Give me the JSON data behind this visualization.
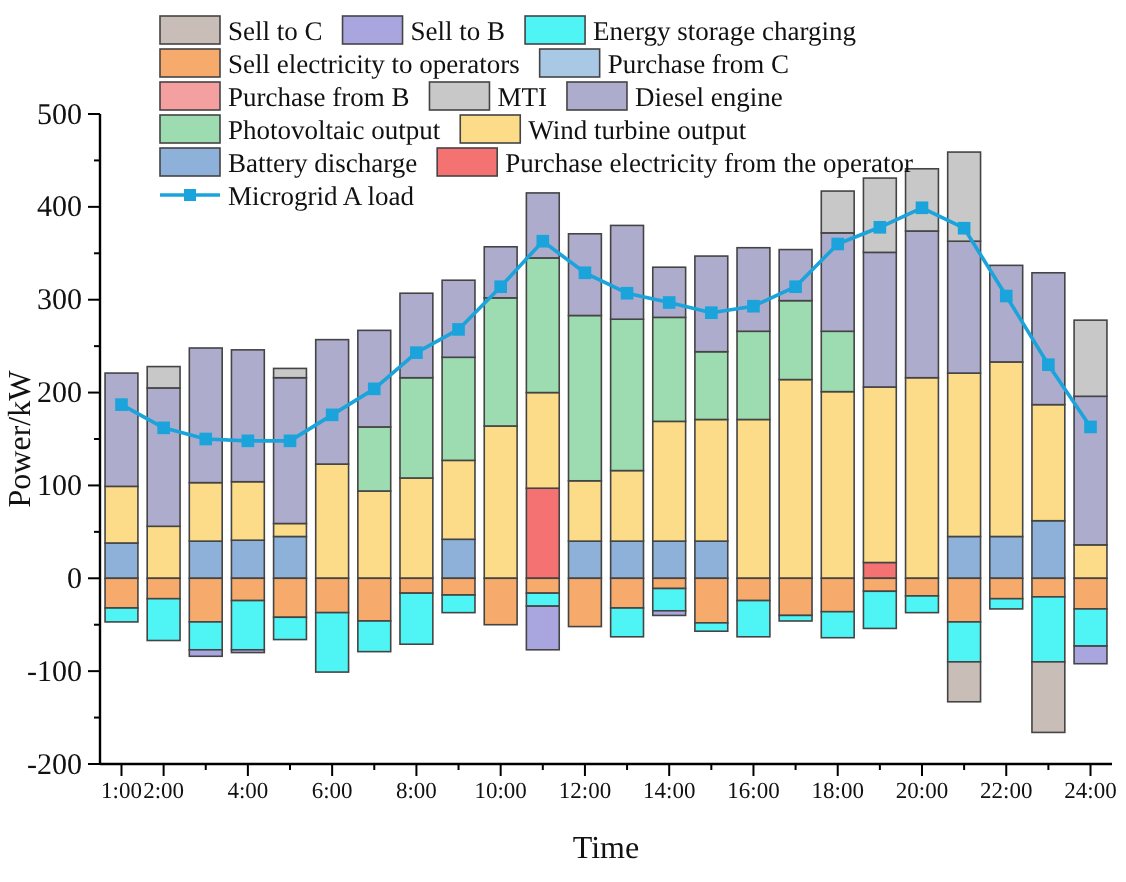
{
  "chart_data": {
    "type": "bar",
    "stacked": true,
    "xlabel": "Time",
    "ylabel": "Power/kW",
    "categories": [
      "1:00",
      "2:00",
      null,
      "4:00",
      null,
      "6:00",
      null,
      "8:00",
      null,
      "10:00",
      null,
      "12:00",
      null,
      "14:00",
      null,
      "16:00",
      null,
      "18:00",
      null,
      "20:00",
      null,
      "22:00",
      null,
      "24:00"
    ],
    "ylim": [
      -200,
      500
    ],
    "yticks": [
      -200,
      {
        "value": -150,
        "label": null
      },
      -100,
      {
        "value": -50,
        "label": null
      },
      0,
      {
        "value": 50,
        "label": null
      },
      100,
      {
        "value": 150,
        "label": null
      },
      200,
      {
        "value": 250,
        "label": null
      },
      300,
      {
        "value": 350,
        "label": null
      },
      400,
      {
        "value": 450,
        "label": null
      },
      500
    ],
    "grid": false,
    "legend": "top",
    "marker": "square",
    "line_style": "solid",
    "series": [
      {
        "name": "Purchase electricity from the operator",
        "color": "#f47272",
        "values": [
          0,
          0,
          0,
          0,
          0,
          0,
          0,
          0,
          0,
          0,
          97,
          0,
          0,
          0,
          0,
          0,
          0,
          0,
          17,
          0,
          0,
          0,
          0,
          0
        ]
      },
      {
        "name": "Battery discharge",
        "color": "#8eb1d9",
        "values": [
          38,
          0,
          40,
          41,
          45,
          0,
          0,
          0,
          42,
          0,
          0,
          40,
          40,
          40,
          40,
          0,
          0,
          0,
          0,
          0,
          45,
          45,
          62,
          0
        ]
      },
      {
        "name": "Wind turbine output",
        "color": "#fcdc88",
        "values": [
          61,
          56,
          63,
          63,
          14,
          123,
          94,
          108,
          85,
          164,
          103,
          65,
          76,
          129,
          131,
          171,
          214,
          201,
          189,
          216,
          176,
          188,
          125,
          36
        ]
      },
      {
        "name": "Photovoltaic output",
        "color": "#9ddcb0",
        "values": [
          0,
          0,
          0,
          0,
          0,
          0,
          69,
          108,
          111,
          138,
          145,
          178,
          163,
          112,
          73,
          95,
          85,
          65,
          0,
          0,
          0,
          0,
          0,
          0
        ]
      },
      {
        "name": "Diesel engine",
        "color": "#aeaccc",
        "values": [
          122,
          149,
          145,
          142,
          157,
          134,
          104,
          91,
          83,
          55,
          70,
          88,
          101,
          54,
          103,
          90,
          55,
          106,
          145,
          158,
          142,
          104,
          142,
          160
        ]
      },
      {
        "name": "MTI",
        "color": "#c8c8c8",
        "values": [
          0,
          23,
          0,
          0,
          10,
          0,
          0,
          0,
          0,
          null,
          0,
          0,
          0,
          0,
          0,
          0,
          0,
          45,
          80,
          67,
          96,
          0,
          0,
          82
        ]
      },
      {
        "name": "Purchase from B",
        "color": "#f5a0a0",
        "values": [
          0,
          0,
          0,
          0,
          0,
          0,
          0,
          0,
          0,
          0,
          0,
          0,
          0,
          0,
          0,
          0,
          0,
          0,
          0,
          0,
          0,
          0,
          0,
          0
        ]
      },
      {
        "name": "Purchase from C",
        "color": "#a9c8e6",
        "values": [
          0,
          0,
          0,
          0,
          0,
          0,
          0,
          0,
          0,
          0,
          0,
          0,
          0,
          0,
          0,
          0,
          0,
          0,
          0,
          0,
          0,
          0,
          0,
          0
        ]
      },
      {
        "name": "Sell electricity to operators",
        "color": "#f6ab6c",
        "values": [
          -32,
          -22,
          -47,
          -24,
          -42,
          -37,
          -46,
          -16,
          -18,
          -50,
          -16,
          -52,
          -32,
          -11,
          -48,
          -24,
          -40,
          -36,
          -14,
          -19,
          -47,
          -22,
          -20,
          -33
        ]
      },
      {
        "name": "Energy storage charging",
        "color": "#4ff5f5",
        "values": [
          -15,
          -45,
          -30,
          -53,
          -24,
          -64,
          -33,
          -55,
          -19,
          0,
          -14,
          0,
          -31,
          -24,
          -9,
          -39,
          -6,
          -28,
          -40,
          -18,
          -43,
          -11,
          -70,
          -40
        ]
      },
      {
        "name": "Sell to B",
        "color": "#a9a6df",
        "values": [
          0,
          0,
          -7,
          -3,
          0,
          0,
          0,
          0,
          0,
          0,
          -47,
          0,
          0,
          -5,
          0,
          0,
          0,
          0,
          0,
          0,
          0,
          0,
          0,
          -19
        ]
      },
      {
        "name": "Sell to C",
        "color": "#c9bdb8",
        "values": [
          0,
          0,
          0,
          0,
          0,
          0,
          0,
          0,
          0,
          0,
          0,
          0,
          0,
          0,
          0,
          0,
          0,
          0,
          0,
          0,
          -43,
          0,
          -76,
          0
        ]
      },
      {
        "name": "Microgrid A load",
        "type": "line",
        "color": "#1aa4db",
        "values": [
          187,
          162,
          150,
          148,
          148,
          176,
          204,
          243,
          268,
          314,
          363,
          329,
          307,
          297,
          286,
          293,
          314,
          360,
          378,
          399,
          377,
          304,
          230,
          163
        ]
      }
    ]
  }
}
